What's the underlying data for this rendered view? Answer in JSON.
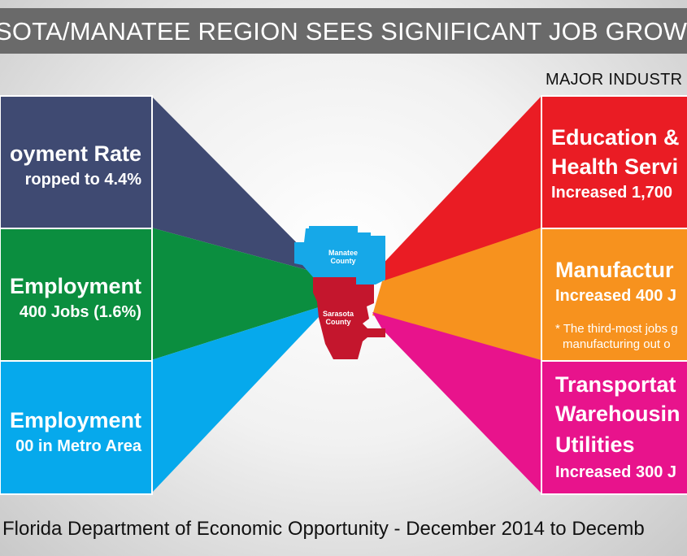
{
  "title": "SOTA/MANATEE REGION SEES SIGNIFICANT JOB GROWTH IN",
  "subheading": "MAJOR INDUSTR",
  "colors": {
    "navy": "#3f4a72",
    "green": "#0b8e3f",
    "blue": "#06a9ec",
    "red": "#ea1c24",
    "orange": "#f7921e",
    "magenta": "#e8138c",
    "map_manatee": "#16a8e8",
    "map_sarasota": "#c4162d"
  },
  "left_panels": [
    {
      "heading": "oyment Rate",
      "detail": "ropped to 4.4%"
    },
    {
      "heading": "Employment",
      "detail": "400 Jobs (1.6%)"
    },
    {
      "heading": "Employment",
      "detail": "00 in Metro Area"
    }
  ],
  "right_panels": [
    {
      "heading_1": "Education &",
      "heading_2": "Health Servi",
      "detail": "Increased 1,700"
    },
    {
      "heading_1": "Manufactur",
      "detail": "Increased 400 J",
      "note_1": "* The third-most jobs g",
      "note_2": "manufacturing out o"
    },
    {
      "heading_1": "Transportat",
      "heading_2": "Warehousin",
      "heading_3": "Utilities",
      "detail": "Increased 300 J"
    }
  ],
  "map": {
    "manatee_label_1": "Manatee",
    "manatee_label_2": "County",
    "sarasota_label_1": "Sarasota",
    "sarasota_label_2": "County"
  },
  "source": "Florida Department of Economic Opportunity - December 2014 to Decemb"
}
